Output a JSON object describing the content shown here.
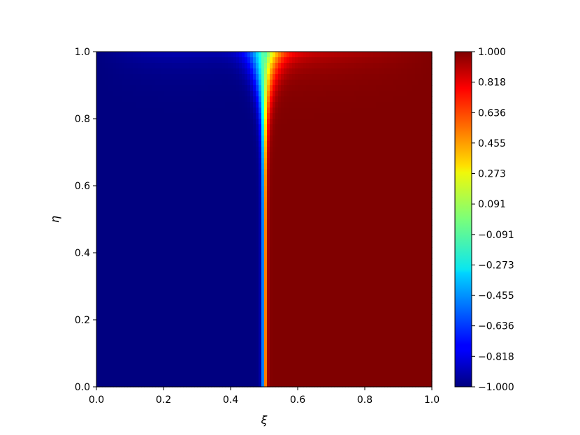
{
  "chart_data": {
    "type": "heatmap",
    "title": "",
    "xlabel": "ξ",
    "ylabel": "η",
    "xlim": [
      0.0,
      1.0
    ],
    "ylim": [
      0.0,
      1.0
    ],
    "x_ticks": [
      "0.0",
      "0.2",
      "0.4",
      "0.6",
      "0.8",
      "1.0"
    ],
    "y_ticks": [
      "0.0",
      "0.2",
      "0.4",
      "0.6",
      "0.8",
      "1.0"
    ],
    "colormap": "jet",
    "colorbar": {
      "vmin": -1.0,
      "vmax": 1.0,
      "ticks": [
        "1.000",
        "0.818",
        "0.636",
        "0.455",
        "0.273",
        "0.091",
        "−0.091",
        "−0.273",
        "−0.455",
        "−0.636",
        "−0.818",
        "−1.000"
      ]
    },
    "description_of_field": "Value ≈ −1 for ξ < 0.5 and ≈ +1 for ξ > 0.5, with a sharp front near ξ = 0.5 that widens toward η = 1; slightly lower values near the top on both sides.",
    "grid": false
  }
}
